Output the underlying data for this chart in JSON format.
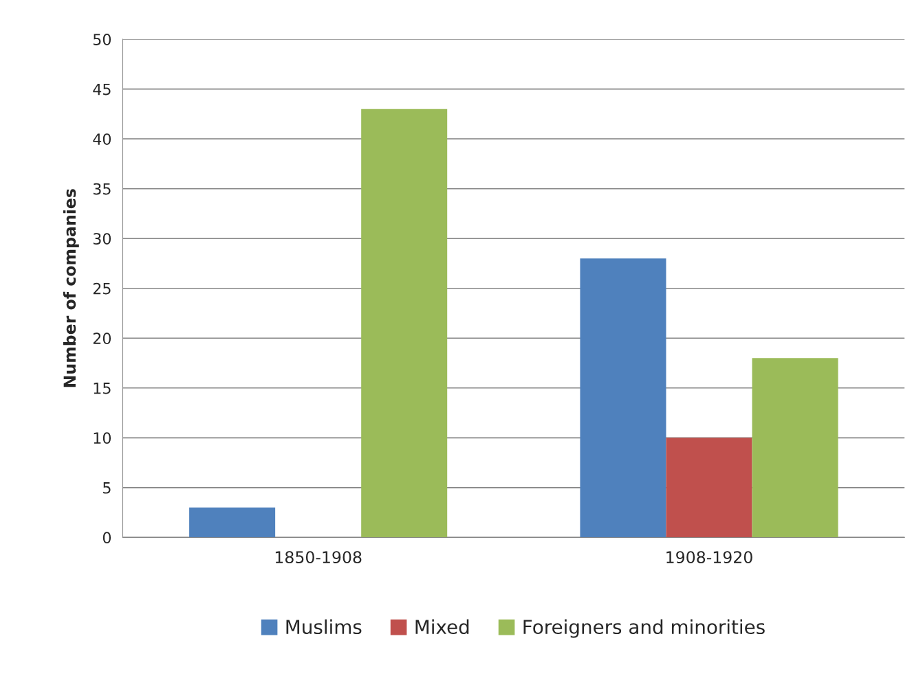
{
  "chart_data": {
    "type": "bar",
    "ylabel": "Number of companies",
    "categories": [
      "1850-1908",
      "1908-1920"
    ],
    "series": [
      {
        "name": "Muslims",
        "color": "#4f81bd",
        "values": [
          3,
          28
        ]
      },
      {
        "name": "Mixed",
        "color": "#c0504d",
        "values": [
          null,
          10
        ]
      },
      {
        "name": "Foreigners and minorities",
        "color": "#9bbb59",
        "values": [
          43,
          18
        ]
      }
    ],
    "ylim": [
      0,
      50
    ],
    "yticks": [
      0,
      5,
      10,
      15,
      20,
      25,
      30,
      35,
      40,
      45,
      50
    ],
    "grid": "y",
    "legend": "bottom"
  }
}
